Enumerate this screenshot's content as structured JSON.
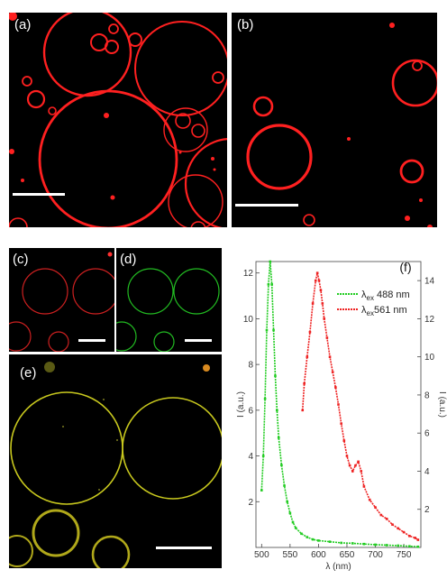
{
  "panels": {
    "a": {
      "label": "(a)"
    },
    "b": {
      "label": "(b)"
    },
    "c": {
      "label": "(c)"
    },
    "d": {
      "label": "(d)"
    },
    "e": {
      "label": "(e)"
    }
  },
  "chart_data": {
    "type": "line",
    "panel_label": "(f)",
    "xlabel": "λ (nm)",
    "ylabel_left": "I (a.u.)",
    "ylabel_right": "I (a.u.)",
    "xlim": [
      490,
      780
    ],
    "ylim_left": [
      0,
      12.5
    ],
    "ylim_right": [
      0,
      15
    ],
    "x_ticks": [
      "500",
      "550",
      "600",
      "650",
      "700",
      "750"
    ],
    "y_ticks_left": [
      "2",
      "4",
      "6",
      "8",
      "10",
      "12"
    ],
    "y_ticks_right": [
      "2",
      "4",
      "6",
      "8",
      "10",
      "12",
      "14"
    ],
    "series": [
      {
        "name": "λex 488 nm",
        "legend_main": "λ",
        "legend_sub": "ex",
        "legend_rest": " 488 nm",
        "color": "#22cc22",
        "axis": "left",
        "x": [
          500,
          503,
          506,
          509,
          512,
          515,
          518,
          521,
          524,
          527,
          530,
          535,
          540,
          545,
          550,
          555,
          560,
          570,
          580,
          590,
          600,
          620,
          640,
          660,
          680,
          700,
          720,
          740,
          760,
          775
        ],
        "y": [
          2.5,
          4.0,
          6.5,
          9.5,
          11.5,
          12.5,
          11.5,
          9.5,
          7.5,
          6.0,
          4.8,
          3.6,
          2.7,
          2.0,
          1.5,
          1.1,
          0.85,
          0.6,
          0.45,
          0.35,
          0.3,
          0.25,
          0.2,
          0.18,
          0.15,
          0.12,
          0.1,
          0.08,
          0.05,
          0.03
        ]
      },
      {
        "name": "λex 561 nm",
        "legend_main": "λ",
        "legend_sub": "ex",
        "legend_rest": "561 nm",
        "color": "#ee2222",
        "axis": "right",
        "x": [
          572,
          575,
          580,
          585,
          590,
          595,
          598,
          601,
          604,
          607,
          610,
          615,
          620,
          625,
          630,
          635,
          640,
          645,
          650,
          655,
          660,
          665,
          670,
          675,
          680,
          690,
          700,
          710,
          720,
          730,
          740,
          750,
          760,
          770,
          775
        ],
        "y": [
          7.2,
          8.6,
          10.0,
          11.3,
          12.8,
          14.0,
          14.4,
          14.0,
          13.5,
          12.8,
          12.0,
          11.0,
          10.0,
          9.2,
          8.4,
          7.5,
          6.5,
          5.6,
          4.8,
          4.3,
          4.0,
          4.3,
          4.5,
          4.0,
          3.2,
          2.5,
          2.1,
          1.7,
          1.5,
          1.2,
          1.0,
          0.8,
          0.6,
          0.5,
          0.4
        ]
      }
    ]
  }
}
